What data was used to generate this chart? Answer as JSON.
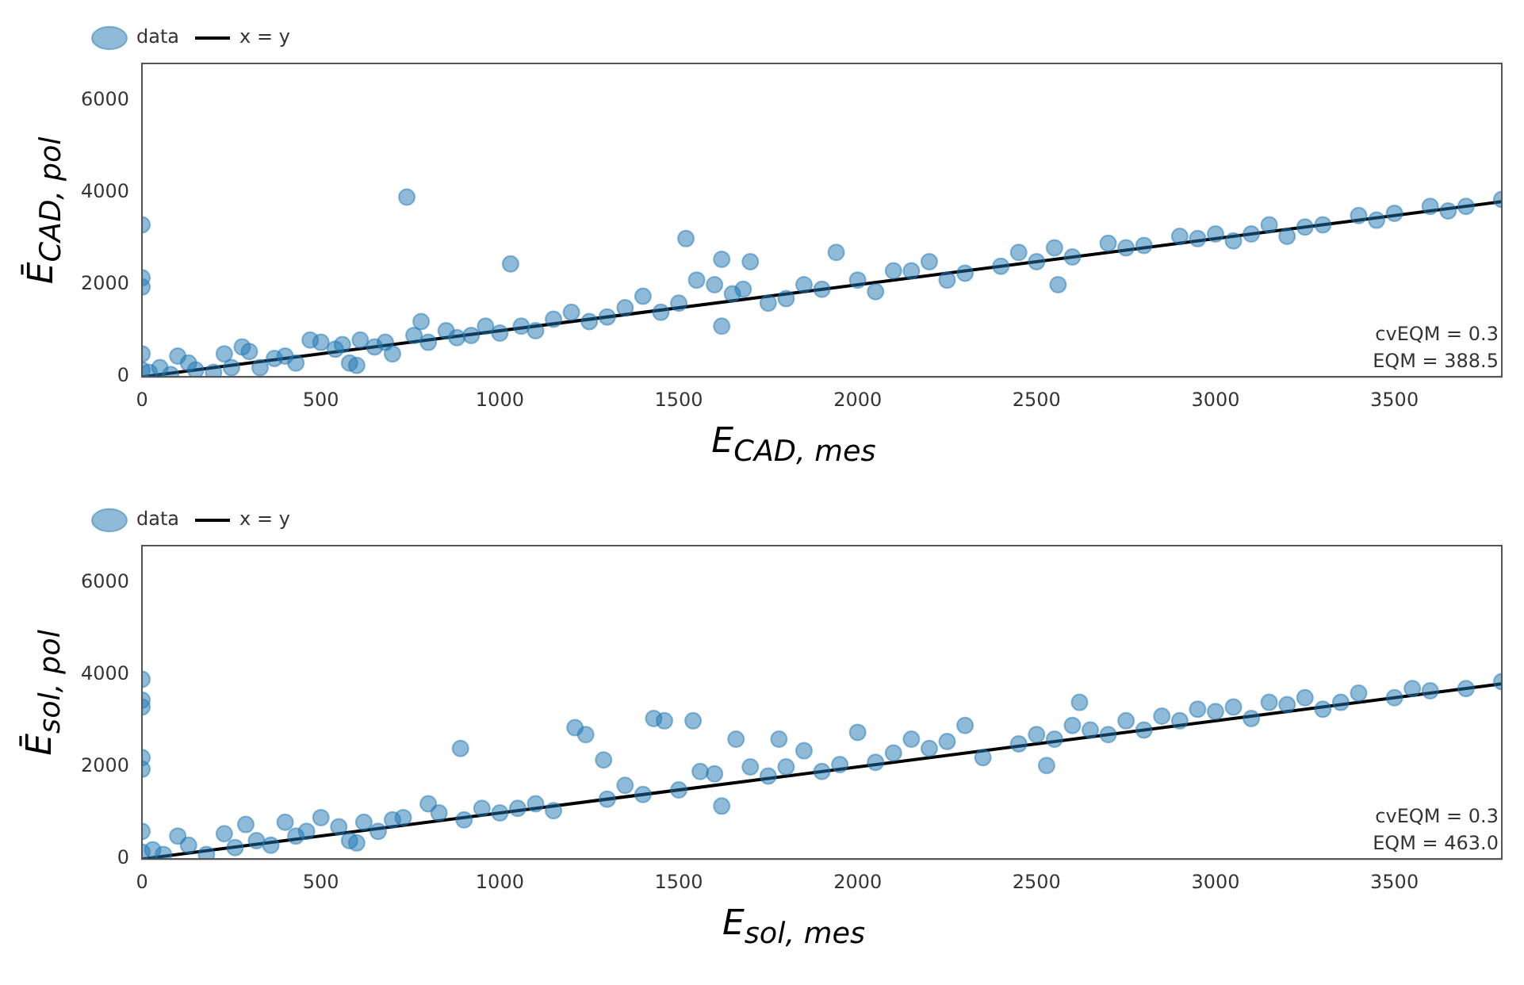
{
  "chart_data": [
    {
      "type": "scatter",
      "xlabel": "E$_{CAD, mes}$",
      "ylabel": "Ē$_{CAD, pol}$",
      "legend": "top left",
      "xlim": [
        0,
        3800
      ],
      "ylim": [
        0,
        6800
      ],
      "xticks": [
        0,
        500,
        1000,
        1500,
        2000,
        2500,
        3000,
        3500
      ],
      "yticks": [
        0,
        2000,
        4000,
        6000
      ],
      "annotations": [
        "cvEQM = 0.3",
        "EQM = 388.5"
      ],
      "series": [
        {
          "name": "data",
          "marker": "circle",
          "color": "#1f77b4",
          "x": [
            0,
            0,
            0,
            0,
            0,
            20,
            50,
            80,
            100,
            130,
            150,
            200,
            230,
            250,
            280,
            300,
            330,
            370,
            400,
            430,
            470,
            500,
            540,
            560,
            580,
            600,
            610,
            650,
            680,
            700,
            740,
            760,
            780,
            800,
            850,
            880,
            920,
            960,
            1000,
            1030,
            1060,
            1100,
            1150,
            1200,
            1250,
            1300,
            1350,
            1400,
            1450,
            1500,
            1520,
            1550,
            1600,
            1620,
            1620,
            1650,
            1680,
            1700,
            1750,
            1800,
            1850,
            1900,
            1940,
            2000,
            2050,
            2100,
            2150,
            2200,
            2250,
            2300,
            2400,
            2450,
            2500,
            2550,
            2560,
            2600,
            2700,
            2750,
            2800,
            2900,
            2950,
            3000,
            3050,
            3100,
            3150,
            3200,
            3250,
            3300,
            3400,
            3450,
            3500,
            3600,
            3650,
            3700,
            3800
          ],
          "values": [
            3300,
            2150,
            1950,
            500,
            150,
            100,
            200,
            50,
            450,
            300,
            150,
            100,
            500,
            200,
            650,
            550,
            200,
            400,
            450,
            300,
            800,
            750,
            600,
            700,
            300,
            250,
            800,
            650,
            750,
            500,
            3900,
            900,
            1200,
            750,
            1000,
            850,
            900,
            1100,
            950,
            2450,
            1100,
            1000,
            1250,
            1400,
            1200,
            1300,
            1500,
            1750,
            1400,
            1600,
            3000,
            2100,
            2000,
            2550,
            1100,
            1800,
            1900,
            2500,
            1600,
            1700,
            2000,
            1900,
            2700,
            2100,
            1850,
            2300,
            2300,
            2500,
            2100,
            2250,
            2400,
            2700,
            2500,
            2800,
            2000,
            2600,
            2900,
            2800,
            2850,
            3050,
            3000,
            3100,
            2950,
            3100,
            3300,
            3050,
            3250,
            3300,
            3500,
            3400,
            3550,
            3700,
            3600,
            3700,
            3850
          ]
        },
        {
          "name": "x = y",
          "type": "line",
          "color": "#000000",
          "x": [
            0,
            3800
          ],
          "values": [
            0,
            3800
          ]
        }
      ]
    },
    {
      "type": "scatter",
      "xlabel": "E$_{sol, mes}$",
      "ylabel": "Ē$_{sol, pol}$",
      "legend": "top left",
      "xlim": [
        0,
        3800
      ],
      "ylim": [
        0,
        6800
      ],
      "xticks": [
        0,
        500,
        1000,
        1500,
        2000,
        2500,
        3000,
        3500
      ],
      "yticks": [
        0,
        2000,
        4000,
        6000
      ],
      "annotations": [
        "cvEQM = 0.3",
        "EQM = 463.0"
      ],
      "series": [
        {
          "name": "data",
          "marker": "circle",
          "color": "#1f77b4",
          "x": [
            0,
            0,
            0,
            0,
            0,
            0,
            0,
            30,
            60,
            100,
            130,
            180,
            230,
            260,
            290,
            320,
            360,
            400,
            430,
            460,
            500,
            550,
            580,
            600,
            620,
            660,
            700,
            730,
            800,
            830,
            890,
            900,
            950,
            1000,
            1050,
            1100,
            1150,
            1210,
            1240,
            1290,
            1300,
            1350,
            1400,
            1430,
            1460,
            1500,
            1540,
            1560,
            1600,
            1620,
            1660,
            1700,
            1750,
            1780,
            1800,
            1850,
            1900,
            1950,
            2000,
            2050,
            2100,
            2150,
            2200,
            2250,
            2300,
            2350,
            2450,
            2500,
            2528,
            2550,
            2600,
            2620,
            2650,
            2700,
            2750,
            2800,
            2850,
            2900,
            2950,
            3000,
            3050,
            3100,
            3150,
            3200,
            3250,
            3300,
            3350,
            3400,
            3500,
            3550,
            3600,
            3700,
            3800
          ],
          "values": [
            3900,
            3450,
            3300,
            2200,
            1950,
            600,
            150,
            200,
            100,
            500,
            300,
            100,
            550,
            250,
            750,
            400,
            300,
            800,
            500,
            600,
            900,
            700,
            400,
            350,
            800,
            600,
            850,
            900,
            1200,
            1000,
            2400,
            850,
            1100,
            1000,
            1100,
            1200,
            1050,
            2850,
            2700,
            2150,
            1300,
            1600,
            1400,
            3050,
            3000,
            1500,
            3000,
            1900,
            1850,
            1150,
            2600,
            2000,
            1800,
            2600,
            2000,
            2350,
            1900,
            2050,
            2750,
            2100,
            2300,
            2600,
            2400,
            2550,
            2900,
            2200,
            2500,
            2700,
            2030,
            2600,
            2900,
            3400,
            2800,
            2700,
            3000,
            2800,
            3100,
            3000,
            3250,
            3200,
            3300,
            3050,
            3400,
            3350,
            3500,
            3250,
            3400,
            3600,
            3500,
            3700,
            3650,
            3700,
            3850
          ]
        },
        {
          "name": "x = y",
          "type": "line",
          "color": "#000000",
          "x": [
            0,
            3800
          ],
          "values": [
            0,
            3800
          ]
        }
      ]
    }
  ]
}
